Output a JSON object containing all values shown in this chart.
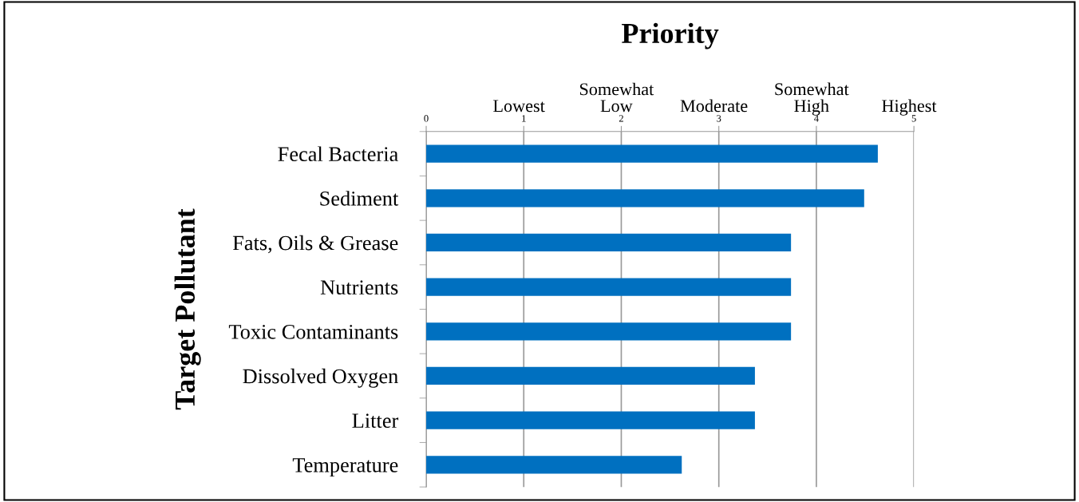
{
  "chart_data": {
    "type": "bar",
    "orientation": "horizontal",
    "title": "Priority",
    "ylabel": "Target Pollutant",
    "categories": [
      "Fecal Bacteria",
      "Sediment",
      "Fats, Oils & Grease",
      "Nutrients",
      "Toxic Contaminants",
      "Dissolved Oxygen",
      "Litter",
      "Temperature"
    ],
    "values": [
      4.63,
      4.49,
      3.74,
      3.74,
      3.74,
      3.37,
      3.37,
      2.62
    ],
    "color": "#0070c0",
    "xlim": [
      0,
      5
    ],
    "xticks": [
      0,
      1,
      2,
      3,
      4,
      5
    ],
    "annotations": [
      "Lowest",
      "Somewhat\nLow",
      "Moderate",
      "Somewhat\nHigh",
      "Highest"
    ],
    "grid": "x",
    "legend": false
  }
}
